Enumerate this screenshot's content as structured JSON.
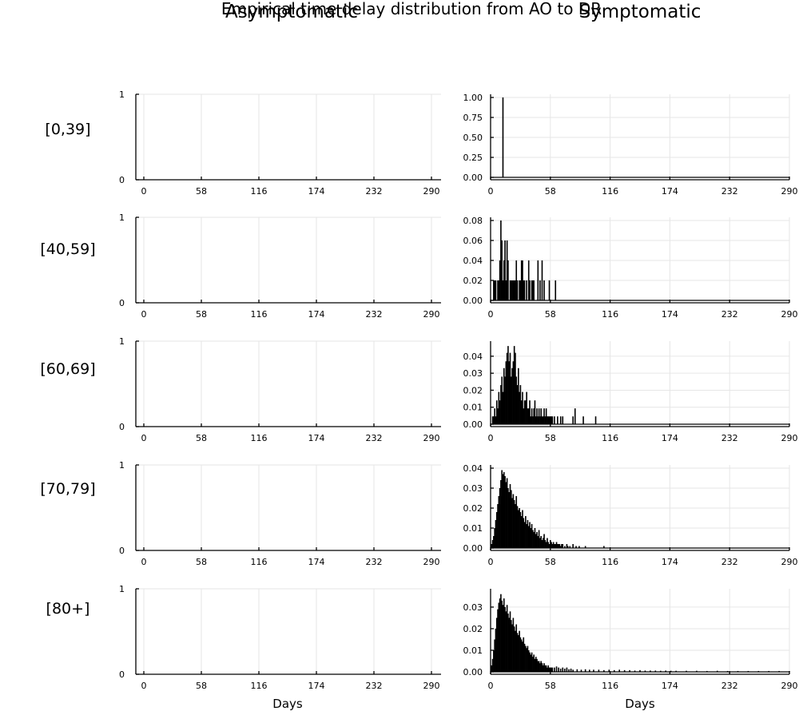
{
  "suptitle": "Empirical time delay distribution from AO to DR",
  "column_titles": [
    "Asymptomatic",
    "Symptomatic"
  ],
  "row_labels": [
    "[0,39]",
    "[40,59]",
    "[60,69]",
    "[70,79]",
    "[80+]"
  ],
  "xlabel": "Days",
  "colors": {
    "bars": "#000000",
    "grid": "#e6e6e6",
    "axis": "#000000"
  },
  "chart_data": {
    "type": "bar",
    "layout": "grid 5 rows x 2 columns",
    "x_ticks": [
      0,
      58,
      116,
      174,
      232,
      290
    ],
    "xlim": [
      -8,
      290
    ],
    "grid": true,
    "legend": "none",
    "panels": [
      {
        "column": "Asymptomatic",
        "row": "[0,39]",
        "ylim": [
          0,
          1
        ],
        "y_ticks": [
          "0",
          "1"
        ],
        "x": [],
        "values": []
      },
      {
        "column": "Symptomatic",
        "row": "[0,39]",
        "ylim": [
          0,
          1.0
        ],
        "y_ticks": [
          "0.00",
          "0.25",
          "0.50",
          "0.75",
          "1.00"
        ],
        "x": [
          12
        ],
        "values": [
          1.0
        ]
      },
      {
        "column": "Asymptomatic",
        "row": "[40,59]",
        "ylim": [
          0,
          1
        ],
        "y_ticks": [
          "0",
          "1"
        ],
        "x": [],
        "values": []
      },
      {
        "column": "Symptomatic",
        "row": "[40,59]",
        "ylim": [
          0,
          0.08
        ],
        "y_ticks": [
          "0.00",
          "0.02",
          "0.04",
          "0.06",
          "0.08"
        ],
        "x": [
          3,
          4,
          5,
          7,
          8,
          9,
          10,
          11,
          12,
          13,
          14,
          15,
          16,
          17,
          19,
          20,
          21,
          22,
          23,
          24,
          25,
          26,
          28,
          29,
          30,
          31,
          32,
          33,
          35,
          37,
          38,
          40,
          41,
          42,
          46,
          48,
          50,
          52,
          57,
          63
        ],
        "values": [
          0.02,
          0.02,
          0.02,
          0.02,
          0.02,
          0.04,
          0.08,
          0.06,
          0.02,
          0.04,
          0.06,
          0.02,
          0.06,
          0.04,
          0.02,
          0.02,
          0.02,
          0.02,
          0.02,
          0.02,
          0.04,
          0.02,
          0.02,
          0.02,
          0.04,
          0.04,
          0.02,
          0.02,
          0.02,
          0.04,
          0.02,
          0.02,
          0.02,
          0.02,
          0.04,
          0.02,
          0.04,
          0.02,
          0.02,
          0.02
        ]
      },
      {
        "column": "Asymptomatic",
        "row": "[60,69]",
        "ylim": [
          0,
          1
        ],
        "y_ticks": [
          "0",
          "1"
        ],
        "x": [],
        "values": []
      },
      {
        "column": "Symptomatic",
        "row": "[60,69]",
        "ylim": [
          0,
          0.047
        ],
        "y_ticks": [
          "0.00",
          "0.01",
          "0.02",
          "0.03",
          "0.04"
        ],
        "x": [
          2,
          3,
          4,
          5,
          6,
          7,
          8,
          9,
          10,
          11,
          12,
          13,
          14,
          15,
          16,
          17,
          18,
          19,
          20,
          21,
          22,
          23,
          24,
          25,
          26,
          27,
          28,
          29,
          30,
          31,
          32,
          33,
          34,
          35,
          36,
          37,
          38,
          39,
          40,
          41,
          42,
          43,
          44,
          45,
          46,
          47,
          48,
          49,
          50,
          51,
          52,
          53,
          54,
          55,
          56,
          57,
          58,
          59,
          60,
          62,
          65,
          68,
          70,
          80,
          82,
          90,
          102
        ],
        "values": [
          0.0046,
          0.0046,
          0.0093,
          0.0046,
          0.014,
          0.0093,
          0.019,
          0.014,
          0.023,
          0.028,
          0.019,
          0.033,
          0.028,
          0.037,
          0.042,
          0.046,
          0.037,
          0.042,
          0.028,
          0.033,
          0.037,
          0.046,
          0.042,
          0.028,
          0.023,
          0.033,
          0.019,
          0.023,
          0.014,
          0.019,
          0.0093,
          0.014,
          0.014,
          0.019,
          0.0093,
          0.0093,
          0.014,
          0.0046,
          0.0093,
          0.0046,
          0.0093,
          0.014,
          0.0046,
          0.0093,
          0.0046,
          0.0093,
          0.0046,
          0.0093,
          0.0046,
          0.0046,
          0.0093,
          0.0046,
          0.0093,
          0.0046,
          0.0046,
          0.0046,
          0.0046,
          0.0046,
          0.0046,
          0.0046,
          0.0046,
          0.0046,
          0.0046,
          0.0046,
          0.0093,
          0.0046,
          0.0046
        ]
      },
      {
        "column": "Asymptomatic",
        "row": "[70,79]",
        "ylim": [
          0,
          1
        ],
        "y_ticks": [
          "0",
          "1"
        ],
        "x": [],
        "values": []
      },
      {
        "column": "Symptomatic",
        "row": "[70,79]",
        "ylim": [
          0,
          0.04
        ],
        "y_ticks": [
          "0.00",
          "0.01",
          "0.02",
          "0.03",
          "0.04"
        ],
        "x": [
          1,
          2,
          3,
          4,
          5,
          6,
          7,
          8,
          9,
          10,
          11,
          12,
          13,
          14,
          15,
          16,
          17,
          18,
          19,
          20,
          21,
          22,
          23,
          24,
          25,
          26,
          27,
          28,
          29,
          30,
          31,
          32,
          33,
          34,
          35,
          36,
          37,
          38,
          39,
          40,
          41,
          42,
          43,
          44,
          45,
          46,
          47,
          48,
          49,
          50,
          51,
          52,
          53,
          54,
          55,
          56,
          57,
          58,
          59,
          60,
          61,
          62,
          63,
          64,
          65,
          66,
          67,
          68,
          69,
          70,
          72,
          74,
          75,
          77,
          80,
          83,
          86,
          92,
          110
        ],
        "values": [
          0.002,
          0.004,
          0.006,
          0.01,
          0.014,
          0.018,
          0.022,
          0.026,
          0.03,
          0.034,
          0.039,
          0.037,
          0.038,
          0.036,
          0.033,
          0.035,
          0.03,
          0.028,
          0.032,
          0.029,
          0.025,
          0.027,
          0.024,
          0.022,
          0.026,
          0.021,
          0.019,
          0.02,
          0.018,
          0.016,
          0.019,
          0.015,
          0.013,
          0.016,
          0.012,
          0.014,
          0.011,
          0.013,
          0.01,
          0.012,
          0.009,
          0.008,
          0.01,
          0.007,
          0.008,
          0.006,
          0.009,
          0.005,
          0.006,
          0.004,
          0.005,
          0.007,
          0.004,
          0.003,
          0.005,
          0.003,
          0.002,
          0.004,
          0.003,
          0.002,
          0.003,
          0.002,
          0.002,
          0.003,
          0.002,
          0.002,
          0.002,
          0.001,
          0.002,
          0.002,
          0.001,
          0.002,
          0.001,
          0.001,
          0.002,
          0.001,
          0.001,
          0.001,
          0.001
        ]
      },
      {
        "column": "Asymptomatic",
        "row": "[80+]",
        "ylim": [
          0,
          1
        ],
        "y_ticks": [
          "0",
          "1"
        ],
        "x": [],
        "values": []
      },
      {
        "column": "Symptomatic",
        "row": "[80+]",
        "ylim": [
          0,
          0.037
        ],
        "y_ticks": [
          "0.00",
          "0.01",
          "0.02",
          "0.03"
        ],
        "x": [
          1,
          2,
          3,
          4,
          5,
          6,
          7,
          8,
          9,
          10,
          11,
          12,
          13,
          14,
          15,
          16,
          17,
          18,
          19,
          20,
          21,
          22,
          23,
          24,
          25,
          26,
          27,
          28,
          29,
          30,
          31,
          32,
          33,
          34,
          35,
          36,
          37,
          38,
          39,
          40,
          41,
          42,
          43,
          44,
          45,
          46,
          47,
          48,
          49,
          50,
          51,
          52,
          53,
          54,
          55,
          56,
          57,
          58,
          59,
          60,
          62,
          64,
          66,
          68,
          70,
          72,
          74,
          76,
          78,
          80,
          84,
          88,
          92,
          96,
          100,
          105,
          110,
          115,
          120,
          125,
          130,
          135,
          140,
          145,
          150,
          155,
          160,
          165,
          170,
          175,
          180,
          190,
          200,
          210,
          220,
          230,
          240,
          250,
          260,
          270,
          280,
          290
        ],
        "values": [
          0.003,
          0.006,
          0.01,
          0.015,
          0.02,
          0.025,
          0.029,
          0.032,
          0.034,
          0.036,
          0.033,
          0.031,
          0.034,
          0.03,
          0.028,
          0.031,
          0.027,
          0.025,
          0.028,
          0.024,
          0.022,
          0.025,
          0.021,
          0.019,
          0.022,
          0.018,
          0.017,
          0.019,
          0.016,
          0.015,
          0.014,
          0.016,
          0.013,
          0.012,
          0.011,
          0.012,
          0.01,
          0.009,
          0.008,
          0.009,
          0.007,
          0.008,
          0.006,
          0.007,
          0.006,
          0.005,
          0.005,
          0.004,
          0.005,
          0.004,
          0.003,
          0.004,
          0.003,
          0.003,
          0.002,
          0.003,
          0.002,
          0.002,
          0.002,
          0.002,
          0.002,
          0.0025,
          0.002,
          0.0015,
          0.002,
          0.0015,
          0.002,
          0.0012,
          0.0015,
          0.001,
          0.0012,
          0.001,
          0.0012,
          0.001,
          0.001,
          0.001,
          0.0008,
          0.001,
          0.0008,
          0.001,
          0.0008,
          0.0008,
          0.0006,
          0.0008,
          0.0006,
          0.0006,
          0.0006,
          0.0005,
          0.0006,
          0.0005,
          0.0005,
          0.0005,
          0.0005,
          0.0004,
          0.0005,
          0.0004,
          0.0004,
          0.0004,
          0.0004,
          0.0004,
          0.0004,
          0.0003
        ]
      }
    ]
  }
}
